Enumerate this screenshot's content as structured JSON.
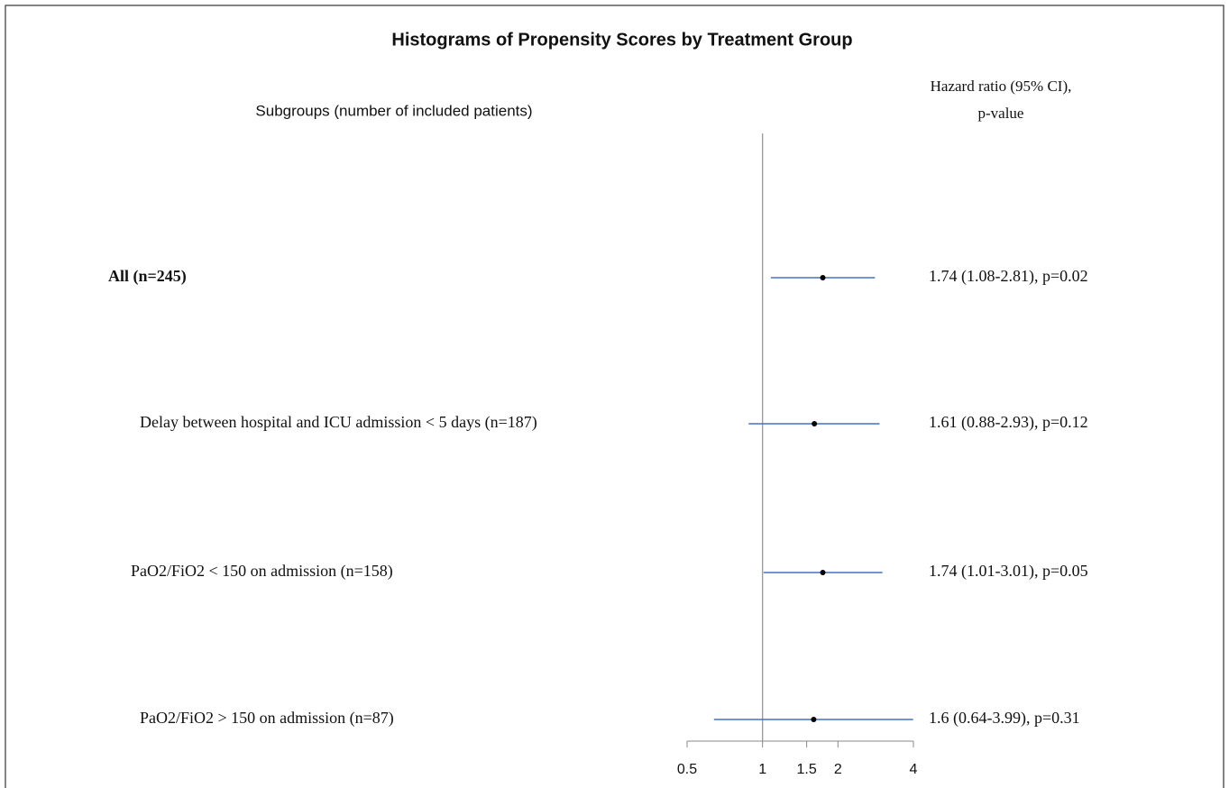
{
  "chart_data": {
    "type": "forest",
    "title": "Histograms of Propensity Scores by Treatment Group",
    "left_header": "Subgroups (number of included patients)",
    "right_header": [
      "Hazard ratio (95% CI),",
      "p-value"
    ],
    "categories": [
      "All (n=245)",
      "Delay between hospital and ICU admission < 5 days (n=187)",
      "PaO2/FiO2 < 150 on admission (n=158)",
      "PaO2/FiO2 > 150 on admission (n=87)"
    ],
    "values": [
      1.74,
      1.61,
      1.74,
      1.6
    ],
    "lower": [
      1.08,
      0.88,
      1.01,
      0.64
    ],
    "upper": [
      2.81,
      2.93,
      3.01,
      3.99
    ],
    "value_labels": [
      "1.74 (1.08-2.81), p=0.02",
      "1.61 (0.88-2.93), p=0.12",
      "1.74 (1.01-3.01), p=0.05",
      "1.6 (0.64-3.99), p=0.31"
    ],
    "xlim": [
      0.5,
      4
    ],
    "xticks": [
      0.5,
      1,
      1.5,
      2,
      4
    ],
    "xscale": "log",
    "reference_line": 1,
    "color": "#4472c4",
    "point_color": "#000000"
  }
}
